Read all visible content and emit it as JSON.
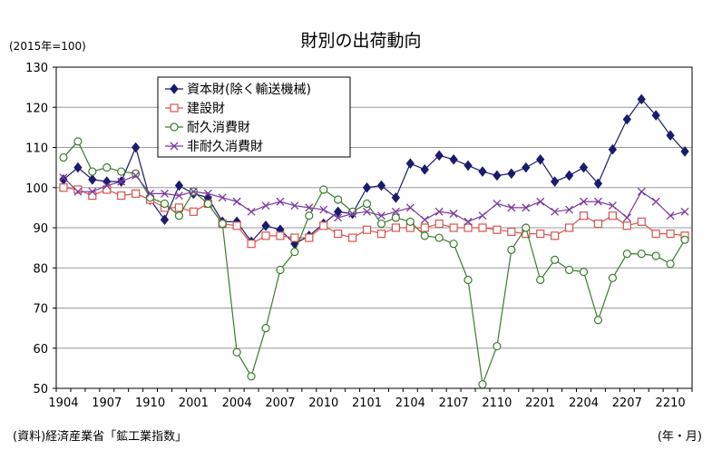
{
  "chart_data": {
    "type": "line",
    "title": "財別の出荷動向",
    "unit_label": "(2015年=100)",
    "source": "(資料)経済産業省「鉱工業指数」",
    "xlabel": "(年・月)",
    "ylim": [
      50,
      130
    ],
    "yticks": [
      50,
      60,
      70,
      80,
      90,
      100,
      110,
      120,
      130
    ],
    "grid": true,
    "legend_position": "top-left",
    "x": [
      "1904",
      "1905",
      "1906",
      "1907",
      "1908",
      "1909",
      "1910",
      "1911",
      "1912",
      "2001",
      "2002",
      "2003",
      "2004",
      "2005",
      "2006",
      "2007",
      "2008",
      "2009",
      "2010",
      "2011",
      "2012",
      "2101",
      "2102",
      "2103",
      "2104",
      "2105",
      "2106",
      "2107",
      "2108",
      "2109",
      "2110",
      "2111",
      "2112",
      "2201",
      "2202",
      "2203",
      "2204",
      "2205",
      "2206",
      "2207",
      "2208",
      "2209",
      "2210",
      "2211"
    ],
    "xtick_labels": [
      "1904",
      "1907",
      "1910",
      "2001",
      "2004",
      "2007",
      "2010",
      "2101",
      "2104",
      "2107",
      "2110",
      "2201",
      "2204",
      "2207",
      "2210"
    ],
    "series": [
      {
        "name": "資本財(除く輸送機械)",
        "color": "#1a1a6e",
        "marker": "diamond",
        "values": [
          102,
          105,
          102,
          101.5,
          101.5,
          110,
          97,
          92,
          100.5,
          98.5,
          97.5,
          91.5,
          91.5,
          86.5,
          90.5,
          89.5,
          86,
          88,
          91,
          94,
          93.5,
          100,
          100.5,
          97.5,
          106,
          104.5,
          108,
          107,
          105.5,
          104,
          103,
          103.5,
          105,
          107,
          101.5,
          103,
          105,
          101,
          109.5,
          117,
          122,
          118,
          113,
          109
        ]
      },
      {
        "name": "建設財",
        "color": "#d9534f",
        "marker": "square",
        "values": [
          100,
          99.5,
          98,
          99.5,
          98,
          98.5,
          97,
          95,
          95,
          94,
          96,
          91,
          90.5,
          86,
          88,
          88,
          87.5,
          87.5,
          90.5,
          88.5,
          87.5,
          89.5,
          88.5,
          90,
          90,
          90,
          91,
          90,
          90,
          90,
          89.5,
          89,
          88.5,
          88.5,
          88,
          90,
          93,
          91,
          93,
          90.5,
          91.5,
          88.5,
          88.5,
          88
        ]
      },
      {
        "name": "耐久消費財",
        "color": "#3a7d2c",
        "marker": "circle",
        "values": [
          107.5,
          111.5,
          104,
          105,
          104,
          103.5,
          97.5,
          96,
          93,
          99,
          96,
          91,
          59,
          53,
          65,
          79.5,
          84,
          93,
          99.5,
          97,
          94,
          96,
          91,
          92.5,
          91.5,
          88,
          87.5,
          86,
          77,
          51,
          60.5,
          84.5,
          90,
          77,
          82,
          79.5,
          79,
          67,
          77.5,
          83.5,
          83.5,
          83,
          81,
          87
        ]
      },
      {
        "name": "非耐久消費財",
        "color": "#7b3a9e",
        "marker": "x",
        "values": [
          102.5,
          99,
          99,
          100.5,
          101.5,
          103,
          98.5,
          98.5,
          98,
          99,
          98.5,
          97.5,
          96.5,
          94,
          95.5,
          96.5,
          95.5,
          95,
          94.5,
          92.5,
          93.5,
          94,
          93,
          94,
          95,
          92,
          94,
          93.5,
          91.5,
          93,
          96,
          95,
          95,
          96.5,
          94,
          94.5,
          96.5,
          96.5,
          95.5,
          92.5,
          99,
          96.5,
          93,
          94
        ]
      }
    ]
  }
}
